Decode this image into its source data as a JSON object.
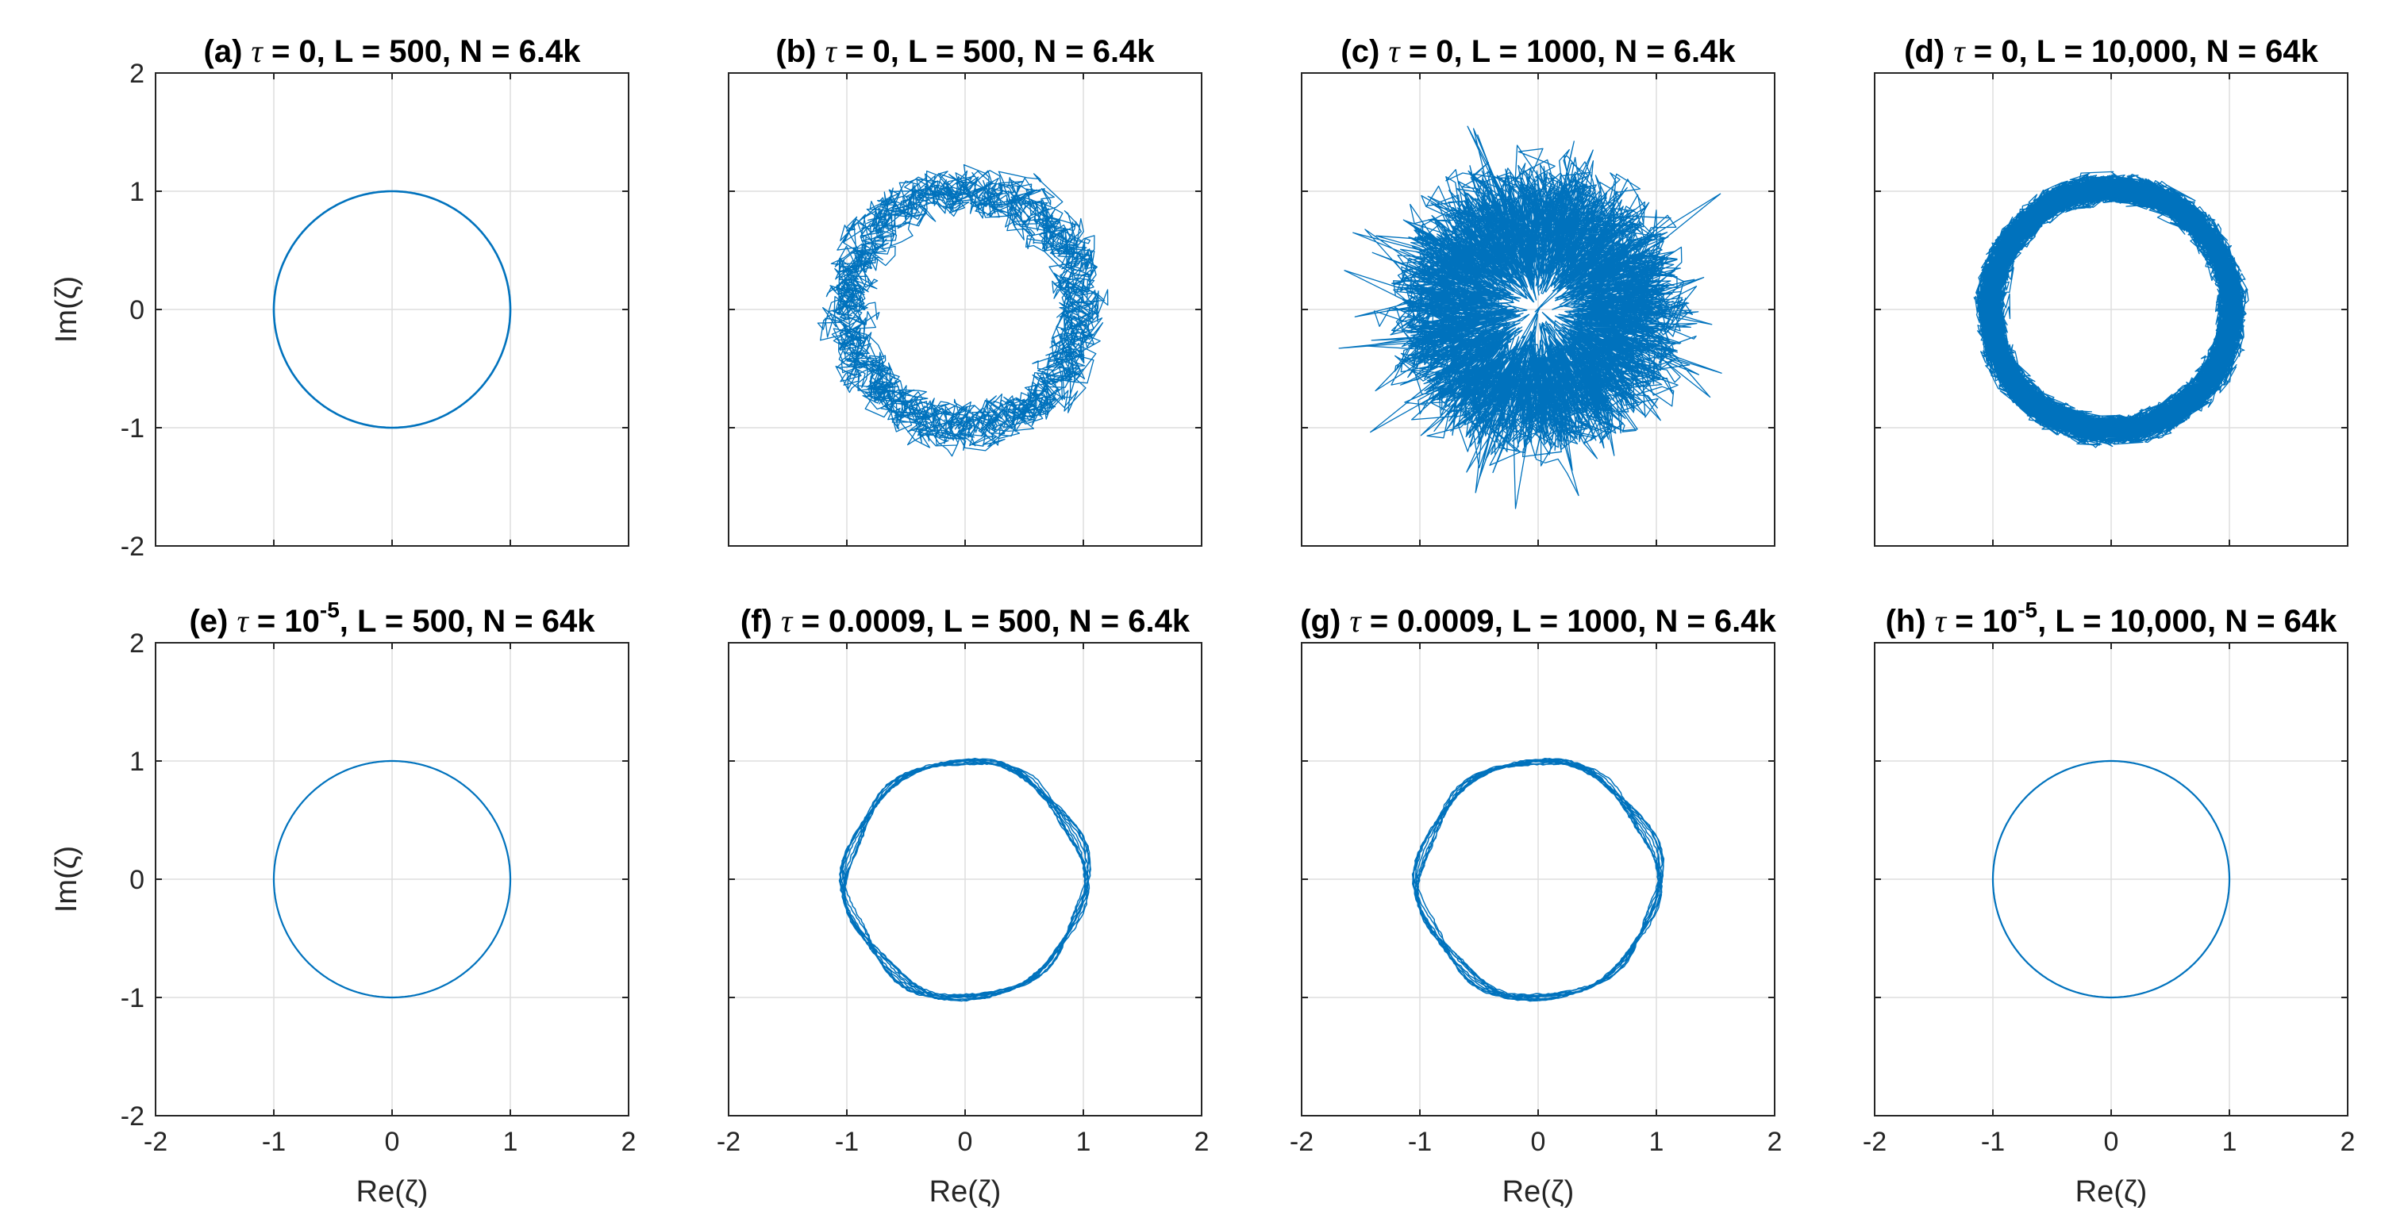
{
  "chart_data": [
    {
      "id": "a",
      "type": "line",
      "title": {
        "prefix": "(a) ",
        "tau": "0",
        "sup": "",
        "rest": ", L = 500, N = 6.4k"
      },
      "xlim": [
        -2,
        2
      ],
      "ylim": [
        -2,
        2
      ],
      "xticks": [
        "-2",
        "-1",
        "0",
        "1",
        "2"
      ],
      "yticks": [
        "-2",
        "-1",
        "0",
        "1",
        "2"
      ],
      "xlabel": "",
      "ylabel": "Im(ζ)",
      "grid": true,
      "series": [
        {
          "shape": "circle",
          "radius": 1.0,
          "noise": 0.0,
          "loops": 1,
          "color": "#0072BD",
          "width": 2.6
        }
      ]
    },
    {
      "id": "b",
      "type": "line",
      "title": {
        "prefix": "(b) ",
        "tau": "0",
        "sup": "",
        "rest": ", L = 500, N = 6.4k"
      },
      "xlim": [
        -2,
        2
      ],
      "ylim": [
        -2,
        2
      ],
      "xticks": [
        "-2",
        "-1",
        "0",
        "1",
        "2"
      ],
      "yticks": [
        "-2",
        "-1",
        "0",
        "1",
        "2"
      ],
      "xlabel": "",
      "ylabel": "",
      "grid": true,
      "series": [
        {
          "shape": "noisy-ring",
          "radius": 1.0,
          "noise": 0.2,
          "loops": 14,
          "color": "#0072BD",
          "width": 1.3
        }
      ]
    },
    {
      "id": "c",
      "type": "line",
      "title": {
        "prefix": "(c) ",
        "tau": "0",
        "sup": "",
        "rest": ", L = 1000, N = 6.4k"
      },
      "xlim": [
        -2,
        2
      ],
      "ylim": [
        -2,
        2
      ],
      "xticks": [
        "-2",
        "-1",
        "0",
        "1",
        "2"
      ],
      "yticks": [
        "-2",
        "-1",
        "0",
        "1",
        "2"
      ],
      "xlabel": "",
      "ylabel": "",
      "grid": true,
      "series": [
        {
          "shape": "noisy-ring",
          "radius": 0.75,
          "noise": 0.5,
          "loops": 40,
          "color": "#0072BD",
          "width": 1.3
        }
      ]
    },
    {
      "id": "d",
      "type": "line",
      "title": {
        "prefix": "(d) ",
        "tau": "0",
        "sup": "",
        "rest": ", L = 10,000, N = 64k"
      },
      "xlim": [
        -2,
        2
      ],
      "ylim": [
        -2,
        2
      ],
      "xticks": [
        "-2",
        "-1",
        "0",
        "1",
        "2"
      ],
      "yticks": [
        "-2",
        "-1",
        "0",
        "1",
        "2"
      ],
      "xlabel": "",
      "ylabel": "",
      "grid": true,
      "series": [
        {
          "shape": "noisy-ring",
          "radius": 1.02,
          "noise": 0.11,
          "loops": 90,
          "color": "#0072BD",
          "width": 1.3
        }
      ]
    },
    {
      "id": "e",
      "type": "line",
      "title": {
        "prefix": "(e) ",
        "tau": "10",
        "sup": "-5",
        "rest": ", L = 500, N = 64k"
      },
      "xlim": [
        -2,
        2
      ],
      "ylim": [
        -2,
        2
      ],
      "xticks": [
        "-2",
        "-1",
        "0",
        "1",
        "2"
      ],
      "yticks": [
        "-2",
        "-1",
        "0",
        "1",
        "2"
      ],
      "xlabel": "Re(ζ)",
      "ylabel": "Im(ζ)",
      "grid": true,
      "series": [
        {
          "shape": "circle",
          "radius": 1.0,
          "noise": 0.0,
          "loops": 1,
          "color": "#0072BD",
          "width": 2.2
        }
      ]
    },
    {
      "id": "f",
      "type": "line",
      "title": {
        "prefix": "(f) ",
        "tau": "0.0009",
        "sup": "",
        "rest": ", L = 500, N = 6.4k"
      },
      "xlim": [
        -2,
        2
      ],
      "ylim": [
        -2,
        2
      ],
      "xticks": [
        "-2",
        "-1",
        "0",
        "1",
        "2"
      ],
      "yticks": [
        "-2",
        "-1",
        "0",
        "1",
        "2"
      ],
      "xlabel": "Re(ζ)",
      "ylabel": "",
      "grid": true,
      "series": [
        {
          "shape": "wobbly-circle",
          "radius": 1.0,
          "noise": 0.035,
          "loops": 10,
          "color": "#0072BD",
          "width": 1.5
        }
      ]
    },
    {
      "id": "g",
      "type": "line",
      "title": {
        "prefix": "(g) ",
        "tau": "0.0009",
        "sup": "",
        "rest": ", L = 1000, N = 6.4k"
      },
      "xlim": [
        -2,
        2
      ],
      "ylim": [
        -2,
        2
      ],
      "xticks": [
        "-2",
        "-1",
        "0",
        "1",
        "2"
      ],
      "yticks": [
        "-2",
        "-1",
        "0",
        "1",
        "2"
      ],
      "xlabel": "Re(ζ)",
      "ylabel": "",
      "grid": true,
      "series": [
        {
          "shape": "wobbly-circle",
          "radius": 1.0,
          "noise": 0.035,
          "loops": 10,
          "color": "#0072BD",
          "width": 1.5
        }
      ]
    },
    {
      "id": "h",
      "type": "line",
      "title": {
        "prefix": "(h) ",
        "tau": "10",
        "sup": "-5",
        "rest": ", L = 10,000, N = 64k"
      },
      "xlim": [
        -2,
        2
      ],
      "ylim": [
        -2,
        2
      ],
      "xticks": [
        "-2",
        "-1",
        "0",
        "1",
        "2"
      ],
      "yticks": [
        "-2",
        "-1",
        "0",
        "1",
        "2"
      ],
      "xlabel": "Re(ζ)",
      "ylabel": "",
      "grid": true,
      "series": [
        {
          "shape": "circle",
          "radius": 1.0,
          "noise": 0.0,
          "loops": 1,
          "color": "#0072BD",
          "width": 2.2
        }
      ]
    }
  ]
}
